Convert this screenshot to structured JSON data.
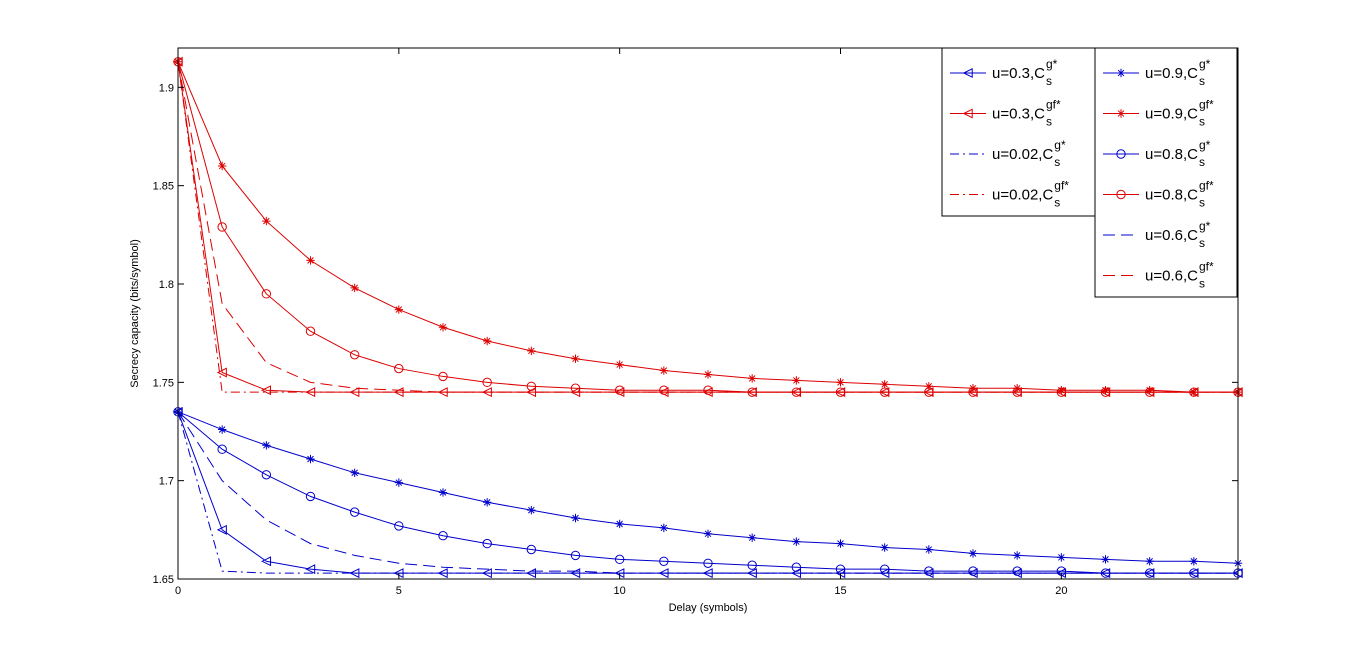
{
  "chart_data": {
    "type": "line",
    "title": "",
    "xlabel": "Delay (symbols)",
    "ylabel": "Secrecy capacity (bits/symbol)",
    "xlim": [
      0,
      24
    ],
    "ylim": [
      1.65,
      1.92
    ],
    "xticks": [
      0,
      5,
      10,
      15,
      20
    ],
    "yticks": [
      1.65,
      1.7,
      1.75,
      1.8,
      1.85,
      1.9
    ],
    "ytick_labels": [
      "1.65",
      "1.7",
      "1.75",
      "1.8",
      "1.85",
      "1.9"
    ],
    "grid": false,
    "x": [
      0,
      1,
      2,
      3,
      4,
      5,
      6,
      7,
      8,
      9,
      10,
      11,
      12,
      13,
      14,
      15,
      16,
      17,
      18,
      19,
      20,
      21,
      22,
      23,
      24
    ],
    "colors": {
      "blue": "#0000cc",
      "red": "#dd0000"
    },
    "legend": [
      {
        "column": 0,
        "series": 0
      },
      {
        "column": 0,
        "series": 1
      },
      {
        "column": 0,
        "series": 2
      },
      {
        "column": 0,
        "series": 3
      },
      {
        "column": 1,
        "series": 4
      },
      {
        "column": 1,
        "series": 5
      },
      {
        "column": 1,
        "series": 6
      },
      {
        "column": 1,
        "series": 7
      },
      {
        "column": 1,
        "series": 8
      },
      {
        "column": 1,
        "series": 9
      }
    ],
    "series": [
      {
        "label": "u=0.3,C",
        "sub": "s",
        "sup": "g*",
        "color": "blue",
        "dash": "solid",
        "marker": "triangle-left",
        "values": [
          1.735,
          1.675,
          1.659,
          1.655,
          1.653,
          1.653,
          1.653,
          1.653,
          1.653,
          1.653,
          1.653,
          1.653,
          1.653,
          1.653,
          1.653,
          1.653,
          1.653,
          1.653,
          1.653,
          1.653,
          1.653,
          1.653,
          1.653,
          1.653,
          1.653
        ]
      },
      {
        "label": "u=0.3,C",
        "sub": "s",
        "sup": "gf*",
        "color": "red",
        "dash": "solid",
        "marker": "triangle-left",
        "values": [
          1.913,
          1.755,
          1.746,
          1.745,
          1.745,
          1.745,
          1.745,
          1.745,
          1.745,
          1.745,
          1.745,
          1.745,
          1.745,
          1.745,
          1.745,
          1.745,
          1.745,
          1.745,
          1.745,
          1.745,
          1.745,
          1.745,
          1.745,
          1.745,
          1.745
        ]
      },
      {
        "label": "u=0.02,C",
        "sub": "s",
        "sup": "g*",
        "color": "blue",
        "dash": "dashdot",
        "marker": "none",
        "values": [
          1.735,
          1.654,
          1.653,
          1.653,
          1.653,
          1.653,
          1.653,
          1.653,
          1.653,
          1.653,
          1.653,
          1.653,
          1.653,
          1.653,
          1.653,
          1.653,
          1.653,
          1.653,
          1.653,
          1.653,
          1.653,
          1.653,
          1.653,
          1.653,
          1.653
        ]
      },
      {
        "label": "u=0.02,C",
        "sub": "s",
        "sup": "gf*",
        "color": "red",
        "dash": "dashdot",
        "marker": "none",
        "values": [
          1.913,
          1.745,
          1.745,
          1.745,
          1.745,
          1.745,
          1.745,
          1.745,
          1.745,
          1.745,
          1.745,
          1.745,
          1.745,
          1.745,
          1.745,
          1.745,
          1.745,
          1.745,
          1.745,
          1.745,
          1.745,
          1.745,
          1.745,
          1.745,
          1.745
        ]
      },
      {
        "label": "u=0.9,C",
        "sub": "s",
        "sup": "g*",
        "color": "blue",
        "dash": "solid",
        "marker": "star",
        "values": [
          1.735,
          1.726,
          1.718,
          1.711,
          1.704,
          1.699,
          1.694,
          1.689,
          1.685,
          1.681,
          1.678,
          1.676,
          1.673,
          1.671,
          1.669,
          1.668,
          1.666,
          1.665,
          1.663,
          1.662,
          1.661,
          1.66,
          1.659,
          1.659,
          1.658
        ]
      },
      {
        "label": "u=0.9,C",
        "sub": "s",
        "sup": "gf*",
        "color": "red",
        "dash": "solid",
        "marker": "star",
        "values": [
          1.913,
          1.86,
          1.832,
          1.812,
          1.798,
          1.787,
          1.778,
          1.771,
          1.766,
          1.762,
          1.759,
          1.756,
          1.754,
          1.752,
          1.751,
          1.75,
          1.749,
          1.748,
          1.747,
          1.747,
          1.746,
          1.746,
          1.746,
          1.745,
          1.745
        ]
      },
      {
        "label": "u=0.8,C",
        "sub": "s",
        "sup": "g*",
        "color": "blue",
        "dash": "solid",
        "marker": "circle",
        "values": [
          1.735,
          1.716,
          1.703,
          1.692,
          1.684,
          1.677,
          1.672,
          1.668,
          1.665,
          1.662,
          1.66,
          1.659,
          1.658,
          1.657,
          1.656,
          1.655,
          1.655,
          1.654,
          1.654,
          1.654,
          1.654,
          1.653,
          1.653,
          1.653,
          1.653
        ]
      },
      {
        "label": "u=0.8,C",
        "sub": "s",
        "sup": "gf*",
        "color": "red",
        "dash": "solid",
        "marker": "circle",
        "values": [
          1.913,
          1.829,
          1.795,
          1.776,
          1.764,
          1.757,
          1.753,
          1.75,
          1.748,
          1.747,
          1.746,
          1.746,
          1.746,
          1.745,
          1.745,
          1.745,
          1.745,
          1.745,
          1.745,
          1.745,
          1.745,
          1.745,
          1.745,
          1.745,
          1.745
        ]
      },
      {
        "label": "u=0.6,C",
        "sub": "s",
        "sup": "g*",
        "color": "blue",
        "dash": "dashed",
        "marker": "none",
        "values": [
          1.735,
          1.7,
          1.68,
          1.668,
          1.662,
          1.658,
          1.656,
          1.655,
          1.654,
          1.654,
          1.653,
          1.653,
          1.653,
          1.653,
          1.653,
          1.653,
          1.653,
          1.653,
          1.653,
          1.653,
          1.653,
          1.653,
          1.653,
          1.653,
          1.653
        ]
      },
      {
        "label": "u=0.6,C",
        "sub": "s",
        "sup": "gf*",
        "color": "red",
        "dash": "dashed",
        "marker": "none",
        "values": [
          1.913,
          1.79,
          1.76,
          1.75,
          1.747,
          1.746,
          1.745,
          1.745,
          1.745,
          1.745,
          1.745,
          1.745,
          1.745,
          1.745,
          1.745,
          1.745,
          1.745,
          1.745,
          1.745,
          1.745,
          1.745,
          1.745,
          1.745,
          1.745,
          1.745
        ]
      }
    ]
  }
}
